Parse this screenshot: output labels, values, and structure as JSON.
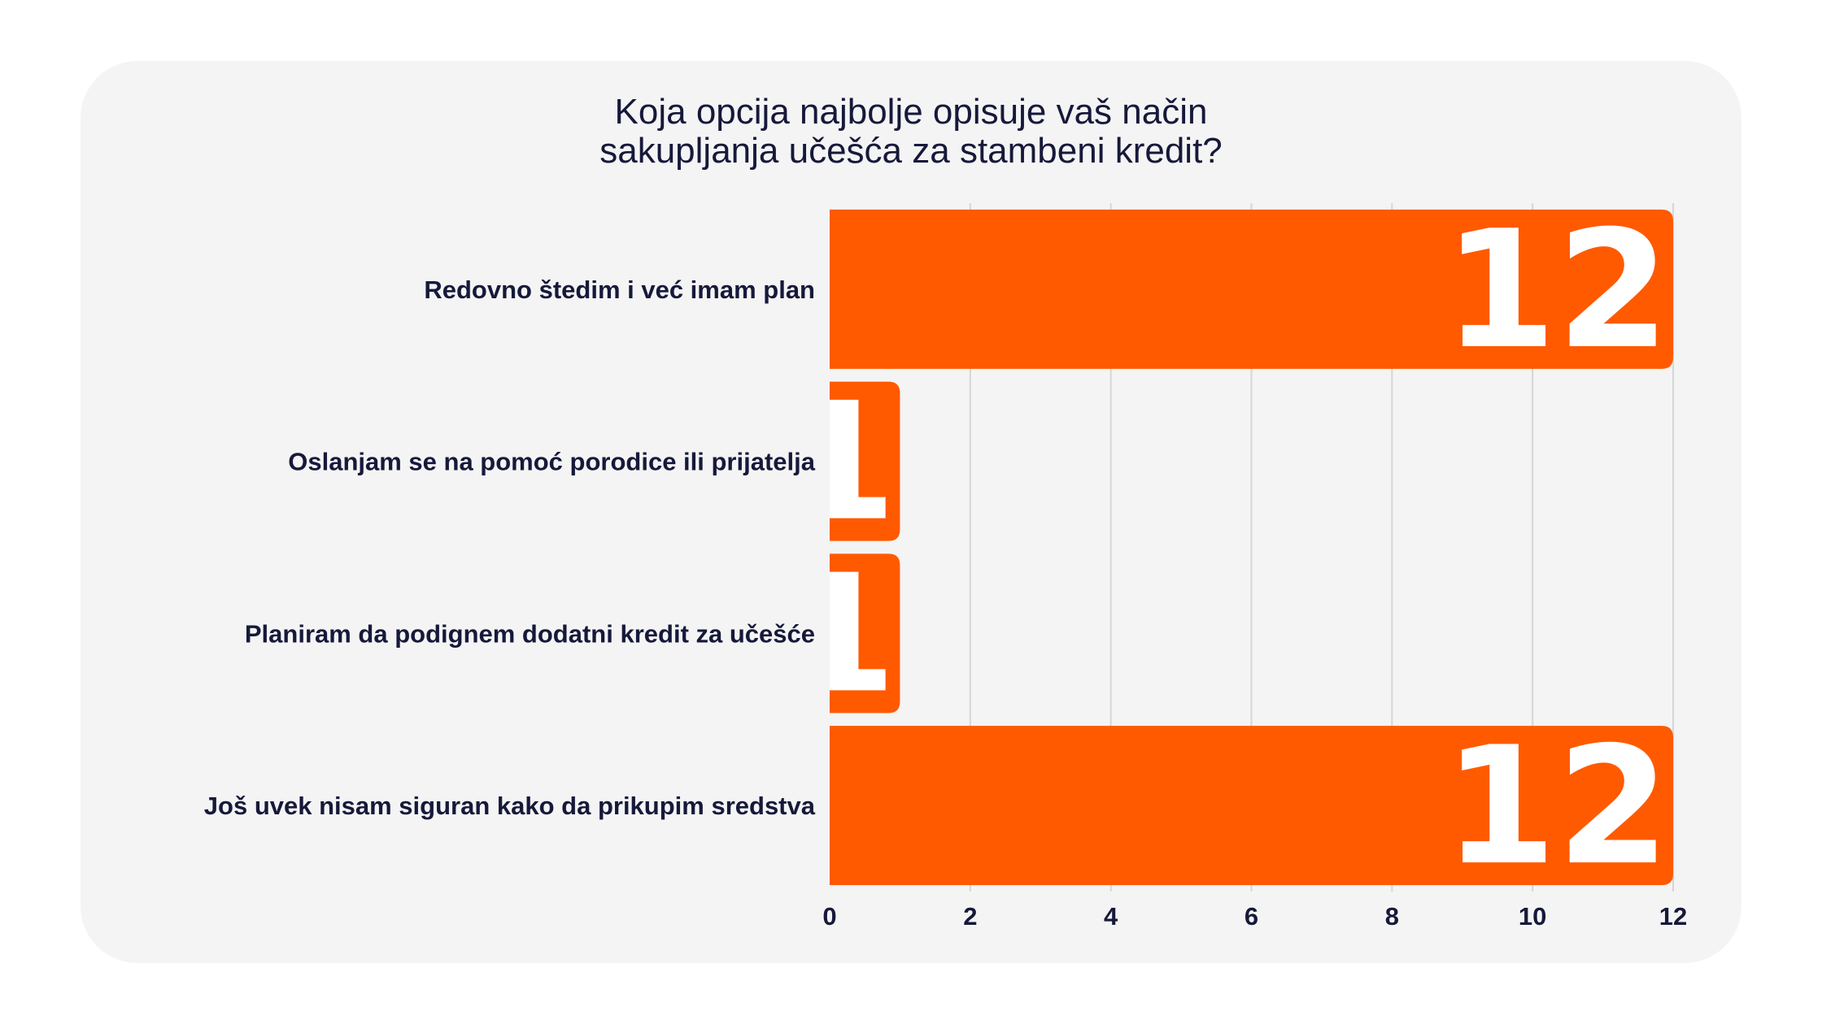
{
  "chart_data": {
    "type": "bar",
    "orientation": "horizontal",
    "title_lines": [
      "Koja opcija najbolje opisuje vaš način",
      "sakupljanja učešća za stambeni kredit?"
    ],
    "categories": [
      "Redovno štedim i već imam plan",
      "Oslanjam se na pomoć porodice ili prijatelja",
      "Planiram da podignem dodatni kredit za učešće",
      "Još uvek nisam siguran kako da prikupim sredstva"
    ],
    "values": [
      12,
      1,
      1,
      12
    ],
    "data_labels": [
      "12",
      "1",
      "1",
      "12"
    ],
    "xlim": [
      0,
      12
    ],
    "xticks": [
      "0",
      "2",
      "4",
      "6",
      "8",
      "10",
      "12"
    ],
    "grid": true,
    "bar_color": "#ff5a00",
    "label_color": "#ffffff",
    "text_color": "#16193a",
    "background_color": "#f4f4f4"
  }
}
